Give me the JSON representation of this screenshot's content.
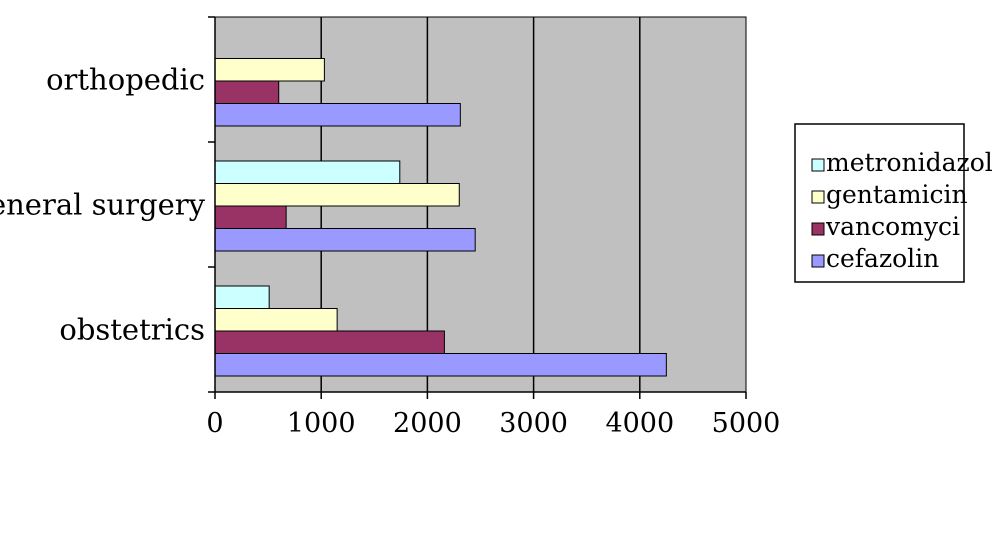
{
  "chart_data": {
    "type": "bar",
    "orientation": "horizontal",
    "title": "",
    "xlabel": "",
    "ylabel": "",
    "categories": [
      "obstetrics",
      "general surgery",
      "orthopedic"
    ],
    "series": [
      {
        "name": "cefazolin",
        "values": [
          4250,
          2450,
          2310
        ],
        "color": "#9999ff"
      },
      {
        "name": "vancomyci",
        "values": [
          2160,
          670,
          600
        ],
        "color": "#993366"
      },
      {
        "name": "gentamicin",
        "values": [
          1150,
          2300,
          1030
        ],
        "color": "#ffffcc"
      },
      {
        "name": "metronidazol",
        "values": [
          510,
          1740,
          0
        ],
        "color": "#ccffff"
      }
    ],
    "xlim": [
      0,
      5000
    ],
    "xticks": [
      "0",
      "1000",
      "2000",
      "3000",
      "4000",
      "5000"
    ],
    "grid": "vertical",
    "plot_background": "#c0c0c0",
    "legend_position": "right",
    "legend_order": [
      "metronidazol",
      "gentamicin",
      "vancomyci",
      "cefazolin"
    ]
  }
}
